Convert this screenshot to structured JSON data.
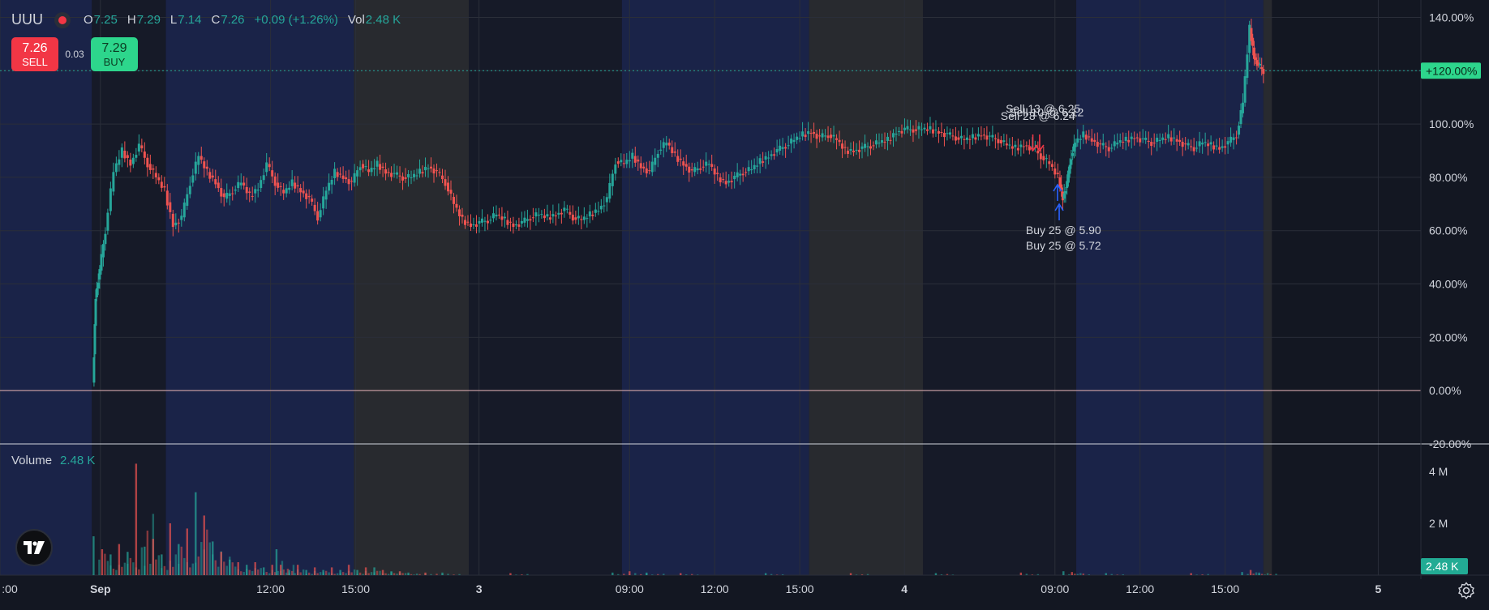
{
  "header": {
    "symbol": "UUU",
    "open_label": "O",
    "open": "7.25",
    "high_label": "H",
    "high": "7.29",
    "low_label": "L",
    "low": "7.14",
    "close_label": "C",
    "close": "7.26",
    "change": "+0.09 (+1.26%)",
    "vol_label": "Vol",
    "vol": "2.48 K"
  },
  "trade": {
    "sell_price": "7.26",
    "sell_label": "SELL",
    "spread": "0.03",
    "buy_price": "7.29",
    "buy_label": "BUY"
  },
  "volume_pane": {
    "label": "Volume",
    "value": "2.48 K"
  },
  "icons": {
    "logo": "tradingview-logo-icon",
    "settings": "gear-icon"
  },
  "colors": {
    "up": "#26a69a",
    "down": "#ef5350",
    "accent": "#2dd68c",
    "bg": "#131722",
    "trade_marker_sell": "#f23645",
    "trade_marker_buy": "#2962ff"
  },
  "chart_data": {
    "type": "candlestick",
    "y_scale": "percent",
    "ylim": [
      -20,
      145
    ],
    "y_ticks": [
      "140.00%",
      "120.00%",
      "100.00%",
      "80.00%",
      "60.00%",
      "40.00%",
      "20.00%",
      "0.00%",
      "-20.00%"
    ],
    "y_tick_values": [
      140,
      120,
      100,
      80,
      60,
      40,
      20,
      0,
      -20
    ],
    "last_value_label": "+120.00%",
    "last_value": 120,
    "zero_line": 0,
    "x_ticks": [
      ":00",
      "Sep",
      "12:00",
      "15:00",
      "3",
      "09:00",
      "12:00",
      "15:00",
      "4",
      "09:00",
      "12:00",
      "15:00",
      "5"
    ],
    "x_tick_pos": [
      0,
      1.18,
      3.18,
      4.18,
      5.63,
      7.4,
      8.4,
      9.4,
      10.63,
      12.4,
      13.4,
      14.4,
      16.2
    ],
    "sessions": [
      {
        "from": 0,
        "to": 1.08,
        "kind": "pre"
      },
      {
        "from": 1.08,
        "to": 1.95,
        "kind": "dark"
      },
      {
        "from": 1.95,
        "to": 4.16,
        "kind": "pre"
      },
      {
        "from": 4.16,
        "to": 5.51,
        "kind": "post"
      },
      {
        "from": 5.51,
        "to": 7.31,
        "kind": "dark"
      },
      {
        "from": 7.31,
        "to": 9.51,
        "kind": "pre"
      },
      {
        "from": 9.51,
        "to": 10.85,
        "kind": "post"
      },
      {
        "from": 10.85,
        "to": 12.65,
        "kind": "dark"
      },
      {
        "from": 12.65,
        "to": 14.85,
        "kind": "pre"
      },
      {
        "from": 14.85,
        "to": 14.95,
        "kind": "post"
      }
    ],
    "price_path": [
      [
        1.1,
        3
      ],
      [
        1.13,
        35
      ],
      [
        1.18,
        45
      ],
      [
        1.25,
        60
      ],
      [
        1.35,
        82
      ],
      [
        1.45,
        90
      ],
      [
        1.55,
        85
      ],
      [
        1.65,
        92
      ],
      [
        1.75,
        85
      ],
      [
        1.85,
        80
      ],
      [
        1.95,
        75
      ],
      [
        2.05,
        62
      ],
      [
        2.15,
        65
      ],
      [
        2.25,
        78
      ],
      [
        2.35,
        88
      ],
      [
        2.45,
        82
      ],
      [
        2.55,
        78
      ],
      [
        2.65,
        72
      ],
      [
        2.75,
        75
      ],
      [
        2.85,
        78
      ],
      [
        2.95,
        73
      ],
      [
        3.05,
        76
      ],
      [
        3.15,
        85
      ],
      [
        3.25,
        78
      ],
      [
        3.35,
        74
      ],
      [
        3.45,
        78
      ],
      [
        3.55,
        75
      ],
      [
        3.65,
        72
      ],
      [
        3.75,
        65
      ],
      [
        3.85,
        75
      ],
      [
        3.95,
        82
      ],
      [
        4.05,
        80
      ],
      [
        4.15,
        78
      ],
      [
        4.25,
        85
      ],
      [
        4.35,
        82
      ],
      [
        4.45,
        85
      ],
      [
        4.55,
        82
      ],
      [
        4.65,
        81
      ],
      [
        4.75,
        80
      ],
      [
        4.85,
        80
      ],
      [
        4.95,
        82
      ],
      [
        5.05,
        84
      ],
      [
        5.15,
        82
      ],
      [
        5.25,
        78
      ],
      [
        5.35,
        70
      ],
      [
        5.45,
        64
      ],
      [
        5.55,
        62
      ],
      [
        5.65,
        63
      ],
      [
        5.75,
        64
      ],
      [
        5.85,
        66
      ],
      [
        5.95,
        64
      ],
      [
        6.05,
        62
      ],
      [
        6.15,
        63
      ],
      [
        6.25,
        65
      ],
      [
        6.35,
        66
      ],
      [
        6.45,
        65
      ],
      [
        6.55,
        66
      ],
      [
        6.65,
        68
      ],
      [
        6.75,
        65
      ],
      [
        6.85,
        64
      ],
      [
        6.95,
        66
      ],
      [
        7.05,
        68
      ],
      [
        7.15,
        72
      ],
      [
        7.25,
        86
      ],
      [
        7.35,
        85
      ],
      [
        7.45,
        88
      ],
      [
        7.55,
        84
      ],
      [
        7.65,
        82
      ],
      [
        7.75,
        90
      ],
      [
        7.85,
        93
      ],
      [
        7.95,
        88
      ],
      [
        8.05,
        85
      ],
      [
        8.15,
        82
      ],
      [
        8.25,
        84
      ],
      [
        8.35,
        85
      ],
      [
        8.45,
        80
      ],
      [
        8.55,
        78
      ],
      [
        8.65,
        80
      ],
      [
        8.75,
        82
      ],
      [
        8.85,
        83
      ],
      [
        8.95,
        86
      ],
      [
        9.05,
        88
      ],
      [
        9.15,
        90
      ],
      [
        9.25,
        92
      ],
      [
        9.35,
        94
      ],
      [
        9.45,
        96
      ],
      [
        9.55,
        97
      ],
      [
        9.65,
        95
      ],
      [
        9.75,
        96
      ],
      [
        9.85,
        94
      ],
      [
        9.95,
        90
      ],
      [
        10.05,
        90
      ],
      [
        10.15,
        91
      ],
      [
        10.25,
        92
      ],
      [
        10.35,
        93
      ],
      [
        10.45,
        94
      ],
      [
        10.55,
        97
      ],
      [
        10.65,
        98
      ],
      [
        10.75,
        98
      ],
      [
        10.85,
        98
      ],
      [
        10.95,
        98
      ],
      [
        11.05,
        97
      ],
      [
        11.15,
        96
      ],
      [
        11.25,
        95
      ],
      [
        11.35,
        94
      ],
      [
        11.45,
        95
      ],
      [
        11.55,
        96
      ],
      [
        11.65,
        95
      ],
      [
        11.75,
        94
      ],
      [
        11.85,
        92
      ],
      [
        11.95,
        91
      ],
      [
        12.05,
        92
      ],
      [
        12.15,
        91
      ],
      [
        12.25,
        88
      ],
      [
        12.35,
        85
      ],
      [
        12.45,
        80
      ],
      [
        12.5,
        72
      ],
      [
        12.55,
        78
      ],
      [
        12.6,
        88
      ],
      [
        12.65,
        93
      ],
      [
        12.75,
        96
      ],
      [
        12.85,
        94
      ],
      [
        12.95,
        92
      ],
      [
        13.05,
        91
      ],
      [
        13.15,
        93
      ],
      [
        13.25,
        94
      ],
      [
        13.35,
        95
      ],
      [
        13.45,
        94
      ],
      [
        13.55,
        93
      ],
      [
        13.65,
        94
      ],
      [
        13.75,
        95
      ],
      [
        13.85,
        94
      ],
      [
        13.95,
        92
      ],
      [
        14.05,
        91
      ],
      [
        14.15,
        93
      ],
      [
        14.25,
        92
      ],
      [
        14.35,
        91
      ],
      [
        14.45,
        93
      ],
      [
        14.55,
        96
      ],
      [
        14.62,
        108
      ],
      [
        14.7,
        136
      ],
      [
        14.75,
        125
      ],
      [
        14.8,
        122
      ],
      [
        14.86,
        120
      ]
    ],
    "volume_ylim": [
      0,
      5
    ],
    "volume_ticks": [
      "4 M",
      "2 M"
    ],
    "volume_tick_values": [
      4,
      2
    ],
    "volume_last_label": "2.48 K",
    "volume_spikes": [
      [
        1.1,
        1.5
      ],
      [
        1.2,
        1.0
      ],
      [
        1.3,
        0.8
      ],
      [
        1.4,
        1.2
      ],
      [
        1.5,
        0.9
      ],
      [
        1.6,
        4.3
      ],
      [
        1.7,
        1.1
      ],
      [
        1.8,
        1.4
      ],
      [
        1.9,
        0.8
      ],
      [
        2.0,
        2.0
      ],
      [
        2.1,
        1.2
      ],
      [
        2.2,
        1.8
      ],
      [
        2.3,
        3.2
      ],
      [
        2.4,
        2.3
      ],
      [
        2.5,
        1.3
      ],
      [
        2.6,
        0.9
      ],
      [
        2.7,
        0.6
      ],
      [
        2.8,
        0.5
      ],
      [
        2.9,
        0.4
      ],
      [
        3.0,
        0.5
      ],
      [
        3.1,
        0.3
      ],
      [
        3.2,
        0.4
      ],
      [
        3.25,
        1.0
      ],
      [
        3.3,
        0.4
      ],
      [
        3.4,
        0.2
      ],
      [
        3.5,
        0.4
      ],
      [
        3.6,
        0.2
      ],
      [
        3.7,
        0.3
      ],
      [
        3.8,
        0.2
      ],
      [
        3.9,
        0.3
      ],
      [
        4.0,
        0.2
      ],
      [
        4.1,
        0.4
      ],
      [
        4.2,
        0.2
      ],
      [
        4.3,
        0.3
      ],
      [
        4.4,
        0.3
      ],
      [
        4.5,
        0.2
      ],
      [
        4.6,
        0.15
      ],
      [
        4.7,
        0.15
      ],
      [
        4.8,
        0.1
      ],
      [
        5.0,
        0.1
      ],
      [
        5.2,
        0.1
      ],
      [
        6.0,
        0.08
      ],
      [
        7.2,
        0.1
      ],
      [
        7.4,
        0.15
      ],
      [
        7.6,
        0.1
      ],
      [
        8.0,
        0.08
      ],
      [
        9.0,
        0.08
      ],
      [
        10.0,
        0.08
      ],
      [
        11.0,
        0.08
      ],
      [
        12.0,
        0.1
      ],
      [
        12.5,
        0.15
      ],
      [
        12.6,
        0.12
      ],
      [
        13.0,
        0.08
      ],
      [
        14.0,
        0.08
      ],
      [
        14.6,
        0.12
      ],
      [
        14.7,
        0.2
      ],
      [
        14.8,
        0.1
      ]
    ],
    "annotations": [
      {
        "text": "Sell 13 @ 6.25",
        "x": 12.26,
        "y": 105,
        "kind": "sell"
      },
      {
        "text": "Sell 10 @ 6.12",
        "x": 12.3,
        "y": 103,
        "kind": "sell"
      },
      {
        "text": "Sell 28 @ 6.24",
        "x": 12.2,
        "y": 101,
        "kind": "sell"
      },
      {
        "text": "Buy 25 @ 5.90",
        "x": 12.5,
        "y": 62,
        "kind": "buy"
      },
      {
        "text": "Buy 25 @ 5.72",
        "x": 12.5,
        "y": 56,
        "kind": "buy"
      }
    ],
    "legend_placement": "top-left"
  }
}
